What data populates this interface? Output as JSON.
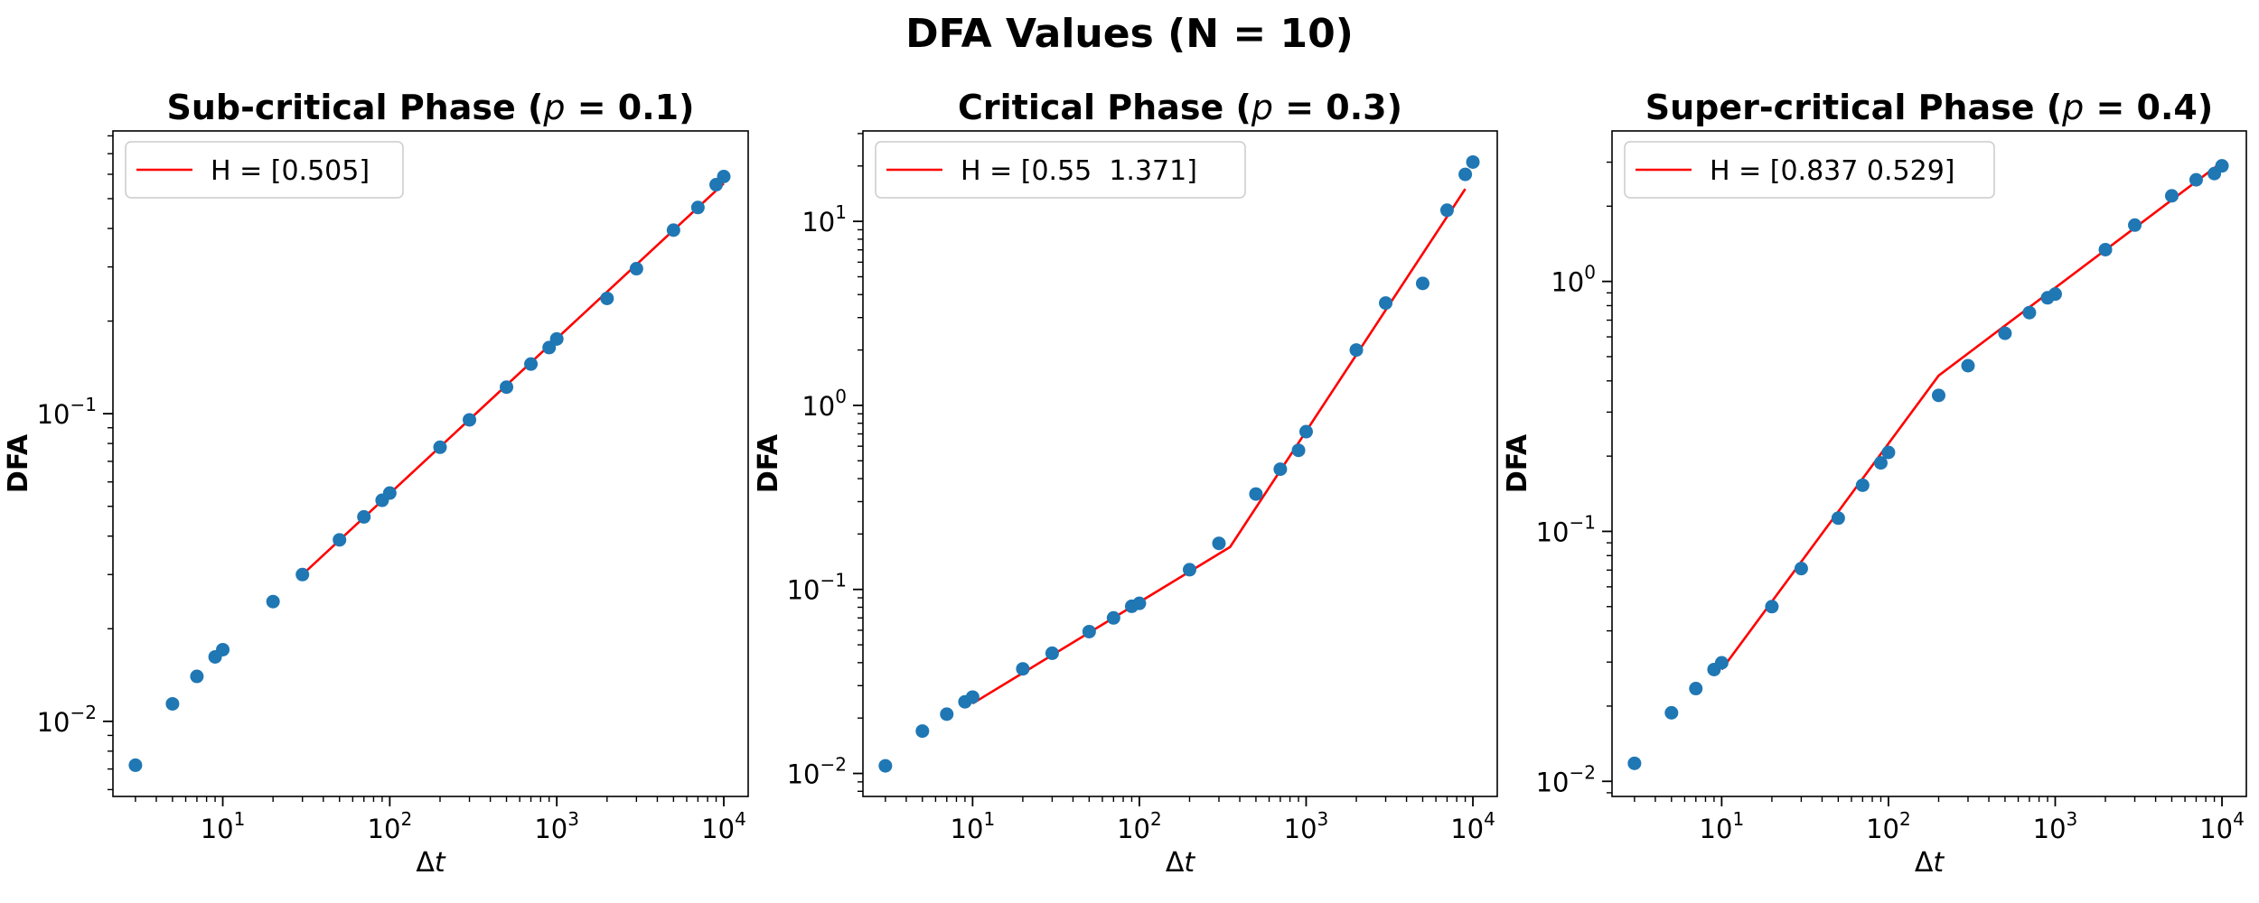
{
  "suptitle": "DFA Values (N = 10)",
  "colors": {
    "points": "#1f77b4",
    "fit": "#ff0000",
    "axes": "#000000",
    "legend_border": "#cccccc"
  },
  "chart_data": [
    {
      "type": "scatter",
      "title": "Sub-critical Phase (p = 0.1)",
      "title_parts": {
        "before": "Sub-critical Phase (",
        "italic": "p",
        "after": " = 0.1)"
      },
      "xlabel": "Δt",
      "xlabel_parts": {
        "plain": "Δ",
        "italic": "t"
      },
      "ylabel": "DFA",
      "xscale": "log",
      "yscale": "log",
      "xlim": [
        2.2,
        14000
      ],
      "ylim": [
        0.0057,
        0.83
      ],
      "xticks": [
        10,
        100,
        1000,
        10000
      ],
      "xtick_exps": [
        "1",
        "2",
        "3",
        "4"
      ],
      "yticks": [
        0.01,
        0.1
      ],
      "ytick_exps": [
        "−2",
        "−1"
      ],
      "legend_label": "H = [0.505]",
      "legend_position": "upper-left",
      "points": {
        "x": [
          3,
          5,
          7,
          9,
          10,
          20,
          30,
          50,
          70,
          90,
          100,
          200,
          300,
          500,
          700,
          900,
          1000,
          2000,
          3000,
          5000,
          7000,
          9000,
          10000
        ],
        "y": [
          0.0072,
          0.0114,
          0.014,
          0.0162,
          0.0171,
          0.0245,
          0.03,
          0.0389,
          0.0462,
          0.0523,
          0.0552,
          0.0778,
          0.0955,
          0.122,
          0.145,
          0.164,
          0.175,
          0.237,
          0.296,
          0.395,
          0.468,
          0.555,
          0.59
        ]
      },
      "fit": {
        "x": [
          30,
          10000
        ],
        "y": [
          0.03,
          0.56
        ]
      }
    },
    {
      "type": "scatter",
      "title": "Critical Phase (p = 0.3)",
      "title_parts": {
        "before": "Critical Phase (",
        "italic": "p",
        "after": " = 0.3)"
      },
      "xlabel": "Δt",
      "xlabel_parts": {
        "plain": "Δ",
        "italic": "t"
      },
      "ylabel": "DFA",
      "xscale": "log",
      "yscale": "log",
      "xlim": [
        2.2,
        14000
      ],
      "ylim": [
        0.0075,
        31
      ],
      "xticks": [
        10,
        100,
        1000,
        10000
      ],
      "xtick_exps": [
        "1",
        "2",
        "3",
        "4"
      ],
      "yticks": [
        0.01,
        0.1,
        1,
        10
      ],
      "ytick_exps": [
        "−2",
        "−1",
        "0",
        "1"
      ],
      "legend_label": "H = [0.55  1.371]",
      "legend_position": "upper-left",
      "points": {
        "x": [
          3,
          5,
          7,
          9,
          10,
          20,
          30,
          50,
          70,
          90,
          100,
          200,
          300,
          500,
          700,
          900,
          1000,
          2000,
          3000,
          5000,
          7000,
          9000,
          10000
        ],
        "y": [
          0.011,
          0.017,
          0.021,
          0.0245,
          0.026,
          0.037,
          0.045,
          0.059,
          0.07,
          0.081,
          0.084,
          0.128,
          0.178,
          0.33,
          0.45,
          0.57,
          0.72,
          2.0,
          3.6,
          4.6,
          11.5,
          18.0,
          21.0
        ]
      },
      "fit": {
        "x": [
          10,
          350,
          9000
        ],
        "y": [
          0.024,
          0.17,
          15.0
        ]
      }
    },
    {
      "type": "scatter",
      "title": "Super-critical Phase (p = 0.4)",
      "title_parts": {
        "before": "Super-critical Phase (",
        "italic": "p",
        "after": " = 0.4)"
      },
      "xlabel": "Δt",
      "xlabel_parts": {
        "plain": "Δ",
        "italic": "t"
      },
      "ylabel": "DFA",
      "xscale": "log",
      "yscale": "log",
      "xlim": [
        2.2,
        14000
      ],
      "ylim": [
        0.0087,
        4.0
      ],
      "xticks": [
        10,
        100,
        1000,
        10000
      ],
      "xtick_exps": [
        "1",
        "2",
        "3",
        "4"
      ],
      "yticks": [
        0.01,
        0.1,
        1
      ],
      "ytick_exps": [
        "−2",
        "−1",
        "0"
      ],
      "legend_label": "H = [0.837 0.529]",
      "legend_position": "upper-left",
      "points": {
        "x": [
          3,
          5,
          7,
          9,
          10,
          20,
          30,
          50,
          70,
          90,
          100,
          200,
          300,
          500,
          700,
          900,
          1000,
          2000,
          3000,
          5000,
          7000,
          9000,
          10000
        ],
        "y": [
          0.0118,
          0.0188,
          0.0235,
          0.028,
          0.0298,
          0.05,
          0.071,
          0.113,
          0.153,
          0.188,
          0.207,
          0.35,
          0.46,
          0.62,
          0.75,
          0.86,
          0.89,
          1.34,
          1.68,
          2.2,
          2.55,
          2.7,
          2.9
        ]
      },
      "fit": {
        "x": [
          10,
          200,
          10000
        ],
        "y": [
          0.028,
          0.42,
          3.0
        ]
      }
    }
  ]
}
